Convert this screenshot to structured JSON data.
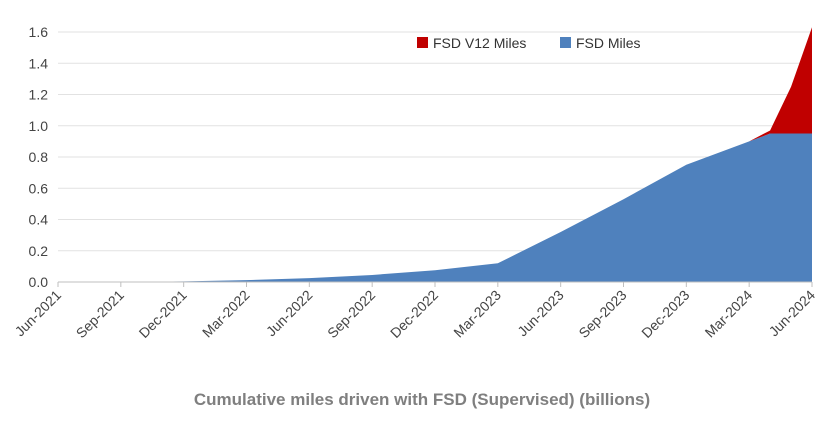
{
  "chart_data": {
    "type": "area",
    "stacked": true,
    "title": "Cumulative miles driven with FSD (Supervised) (billions)",
    "xlabel": "",
    "ylabel": "",
    "ylim": [
      0,
      1.6
    ],
    "yticks": [
      0.0,
      0.2,
      0.4,
      0.6,
      0.8,
      1.0,
      1.2,
      1.4,
      1.6
    ],
    "ytick_labels": [
      "0.0",
      "0.2",
      "0.4",
      "0.6",
      "0.8",
      "1.0",
      "1.2",
      "1.4",
      "1.6"
    ],
    "x_tick_labels": [
      "Jun-2021",
      "Sep-2021",
      "Dec-2021",
      "Mar-2022",
      "Jun-2022",
      "Sep-2022",
      "Dec-2022",
      "Mar-2023",
      "Jun-2023",
      "Sep-2023",
      "Dec-2023",
      "Mar-2024",
      "Jun-2024"
    ],
    "x_range": [
      "2021-06",
      "2024-06"
    ],
    "grid": true,
    "legend_position": "top-right",
    "series": [
      {
        "name": "FSD Miles",
        "color": "#4f81bd",
        "points": [
          [
            "2021-06",
            0.0
          ],
          [
            "2021-09",
            0.0
          ],
          [
            "2021-12",
            0.004
          ],
          [
            "2022-03",
            0.012
          ],
          [
            "2022-06",
            0.025
          ],
          [
            "2022-09",
            0.045
          ],
          [
            "2022-12",
            0.075
          ],
          [
            "2023-03",
            0.12
          ],
          [
            "2023-06",
            0.32
          ],
          [
            "2023-09",
            0.53
          ],
          [
            "2023-12",
            0.75
          ],
          [
            "2024-03",
            0.9
          ],
          [
            "2024-04",
            0.95
          ],
          [
            "2024-06",
            0.95
          ]
        ]
      },
      {
        "name": "FSD V12 Miles",
        "color": "#c00000",
        "points": [
          [
            "2024-03",
            0.0
          ],
          [
            "2024-04",
            0.02
          ],
          [
            "2024-05",
            0.3
          ],
          [
            "2024-06",
            0.68
          ]
        ]
      }
    ]
  }
}
